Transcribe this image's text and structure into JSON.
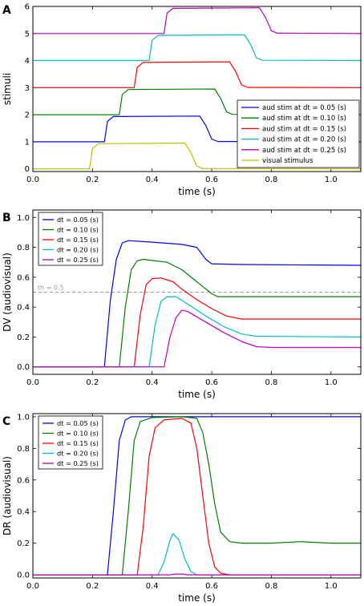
{
  "chart_data": [
    {
      "panel": "A",
      "type": "line",
      "xlabel": "time (s)",
      "ylabel": "stimuli",
      "xlim": [
        0.0,
        1.1
      ],
      "ylim": [
        -0.1,
        6.0
      ],
      "xticks": [
        "0.0",
        "0.2",
        "0.4",
        "0.6",
        "0.8",
        "1.0"
      ],
      "yticks": [
        "0",
        "1",
        "2",
        "3",
        "4",
        "5",
        "6"
      ],
      "legend_position": "lower-right",
      "series": [
        {
          "name": "aud stim at dt = 0.05 (s)",
          "color": "#0000ff",
          "points": [
            [
              0,
              1
            ],
            [
              0.24,
              1
            ],
            [
              0.25,
              1.75
            ],
            [
              0.27,
              1.93
            ],
            [
              0.56,
              1.95
            ],
            [
              0.58,
              1.6
            ],
            [
              0.6,
              1.1
            ],
            [
              0.62,
              1.01
            ],
            [
              1.1,
              1
            ]
          ]
        },
        {
          "name": "aud stim at dt = 0.10 (s)",
          "color": "#008000",
          "points": [
            [
              0,
              2
            ],
            [
              0.29,
              2
            ],
            [
              0.3,
              2.75
            ],
            [
              0.32,
              2.93
            ],
            [
              0.61,
              2.95
            ],
            [
              0.63,
              2.6
            ],
            [
              0.65,
              2.1
            ],
            [
              0.67,
              2.01
            ],
            [
              1.1,
              2
            ]
          ]
        },
        {
          "name": "aud stim at dt = 0.15 (s)",
          "color": "#ff0000",
          "points": [
            [
              0,
              3
            ],
            [
              0.34,
              3
            ],
            [
              0.35,
              3.75
            ],
            [
              0.37,
              3.93
            ],
            [
              0.66,
              3.95
            ],
            [
              0.68,
              3.6
            ],
            [
              0.7,
              3.1
            ],
            [
              0.72,
              3.01
            ],
            [
              1.1,
              3
            ]
          ]
        },
        {
          "name": "aud stim at dt = 0.20 (s)",
          "color": "#00bfbf",
          "points": [
            [
              0,
              4
            ],
            [
              0.39,
              4
            ],
            [
              0.4,
              4.75
            ],
            [
              0.42,
              4.93
            ],
            [
              0.71,
              4.95
            ],
            [
              0.73,
              4.6
            ],
            [
              0.75,
              4.1
            ],
            [
              0.77,
              4.01
            ],
            [
              1.1,
              4
            ]
          ]
        },
        {
          "name": "aud stim at dt = 0.25 (s)",
          "color": "#bf00bf",
          "points": [
            [
              0,
              5
            ],
            [
              0.44,
              5
            ],
            [
              0.45,
              5.75
            ],
            [
              0.47,
              5.93
            ],
            [
              0.76,
              5.95
            ],
            [
              0.78,
              5.6
            ],
            [
              0.8,
              5.1
            ],
            [
              0.82,
              5.01
            ],
            [
              1.1,
              5
            ]
          ]
        },
        {
          "name": "visual stimulus",
          "color": "#bfbf00",
          "points": [
            [
              0,
              0
            ],
            [
              0.19,
              0
            ],
            [
              0.2,
              0.75
            ],
            [
              0.22,
              0.93
            ],
            [
              0.51,
              0.95
            ],
            [
              0.53,
              0.6
            ],
            [
              0.55,
              0.1
            ],
            [
              0.57,
              0.01
            ],
            [
              1.1,
              0
            ]
          ]
        }
      ]
    },
    {
      "panel": "B",
      "type": "line",
      "xlabel": "time (s)",
      "ylabel": "DV (audiovisual)",
      "xlim": [
        0.0,
        1.1
      ],
      "ylim": [
        -0.05,
        1.05
      ],
      "xticks": [
        "0.0",
        "0.2",
        "0.4",
        "0.6",
        "0.8",
        "1.0"
      ],
      "yticks": [
        "0.0",
        "0.2",
        "0.4",
        "0.6",
        "0.8",
        "1.0"
      ],
      "threshold": {
        "label": "th = 0.5",
        "value": 0.5,
        "color": "#999999"
      },
      "legend_position": "top-left",
      "series": [
        {
          "name": "dt = 0.05 (s)",
          "color": "#0000ff",
          "points": [
            [
              0,
              0
            ],
            [
              0.24,
              0
            ],
            [
              0.26,
              0.45
            ],
            [
              0.28,
              0.72
            ],
            [
              0.3,
              0.83
            ],
            [
              0.32,
              0.845
            ],
            [
              0.4,
              0.835
            ],
            [
              0.5,
              0.82
            ],
            [
              0.55,
              0.8
            ],
            [
              0.58,
              0.72
            ],
            [
              0.6,
              0.69
            ],
            [
              0.7,
              0.685
            ],
            [
              1.1,
              0.68
            ]
          ]
        },
        {
          "name": "dt = 0.10 (s)",
          "color": "#008000",
          "points": [
            [
              0,
              0
            ],
            [
              0.29,
              0
            ],
            [
              0.31,
              0.4
            ],
            [
              0.33,
              0.65
            ],
            [
              0.35,
              0.71
            ],
            [
              0.37,
              0.72
            ],
            [
              0.45,
              0.7
            ],
            [
              0.5,
              0.65
            ],
            [
              0.55,
              0.57
            ],
            [
              0.6,
              0.49
            ],
            [
              0.62,
              0.47
            ],
            [
              1.1,
              0.47
            ]
          ]
        },
        {
          "name": "dt = 0.15 (s)",
          "color": "#ff0000",
          "points": [
            [
              0,
              0
            ],
            [
              0.34,
              0
            ],
            [
              0.36,
              0.35
            ],
            [
              0.38,
              0.55
            ],
            [
              0.4,
              0.59
            ],
            [
              0.43,
              0.595
            ],
            [
              0.47,
              0.57
            ],
            [
              0.5,
              0.52
            ],
            [
              0.55,
              0.45
            ],
            [
              0.6,
              0.39
            ],
            [
              0.65,
              0.34
            ],
            [
              0.7,
              0.32
            ],
            [
              1.1,
              0.32
            ]
          ]
        },
        {
          "name": "dt = 0.20 (s)",
          "color": "#00bfbf",
          "points": [
            [
              0,
              0
            ],
            [
              0.39,
              0
            ],
            [
              0.41,
              0.28
            ],
            [
              0.43,
              0.44
            ],
            [
              0.45,
              0.47
            ],
            [
              0.48,
              0.47
            ],
            [
              0.52,
              0.42
            ],
            [
              0.58,
              0.34
            ],
            [
              0.64,
              0.27
            ],
            [
              0.7,
              0.22
            ],
            [
              0.75,
              0.205
            ],
            [
              1.1,
              0.2
            ]
          ]
        },
        {
          "name": "dt = 0.25 (s)",
          "color": "#bf00bf",
          "points": [
            [
              0,
              0
            ],
            [
              0.44,
              0
            ],
            [
              0.46,
              0.2
            ],
            [
              0.48,
              0.33
            ],
            [
              0.5,
              0.38
            ],
            [
              0.52,
              0.37
            ],
            [
              0.58,
              0.3
            ],
            [
              0.64,
              0.23
            ],
            [
              0.7,
              0.17
            ],
            [
              0.75,
              0.135
            ],
            [
              0.8,
              0.13
            ],
            [
              1.1,
              0.13
            ]
          ]
        }
      ]
    },
    {
      "panel": "C",
      "type": "line",
      "xlabel": "time (s)",
      "ylabel": "DR (audiovisual)",
      "xlim": [
        0.0,
        1.1
      ],
      "ylim": [
        -0.02,
        1.02
      ],
      "xticks": [
        "0.0",
        "0.2",
        "0.4",
        "0.6",
        "0.8",
        "1.0"
      ],
      "yticks": [
        "0.0",
        "0.2",
        "0.4",
        "0.6",
        "0.8",
        "1.0"
      ],
      "legend_position": "top-left",
      "series": [
        {
          "name": "dt = 0.05 (s)",
          "color": "#0000ff",
          "points": [
            [
              0,
              0
            ],
            [
              0.25,
              0
            ],
            [
              0.27,
              0.4
            ],
            [
              0.29,
              0.85
            ],
            [
              0.31,
              0.98
            ],
            [
              0.33,
              1.0
            ],
            [
              1.1,
              1.0
            ]
          ]
        },
        {
          "name": "dt = 0.10 (s)",
          "color": "#008000",
          "points": [
            [
              0,
              0
            ],
            [
              0.3,
              0
            ],
            [
              0.32,
              0.4
            ],
            [
              0.34,
              0.85
            ],
            [
              0.36,
              0.97
            ],
            [
              0.4,
              0.995
            ],
            [
              0.5,
              1.0
            ],
            [
              0.55,
              0.99
            ],
            [
              0.57,
              0.9
            ],
            [
              0.59,
              0.7
            ],
            [
              0.61,
              0.45
            ],
            [
              0.63,
              0.27
            ],
            [
              0.66,
              0.21
            ],
            [
              0.7,
              0.2
            ],
            [
              0.8,
              0.2
            ],
            [
              0.9,
              0.21
            ],
            [
              1.0,
              0.2
            ],
            [
              1.1,
              0.2
            ]
          ]
        },
        {
          "name": "dt = 0.15 (s)",
          "color": "#ff0000",
          "points": [
            [
              0,
              0
            ],
            [
              0.35,
              0
            ],
            [
              0.37,
              0.3
            ],
            [
              0.39,
              0.75
            ],
            [
              0.41,
              0.93
            ],
            [
              0.44,
              0.98
            ],
            [
              0.5,
              0.99
            ],
            [
              0.53,
              0.96
            ],
            [
              0.55,
              0.8
            ],
            [
              0.57,
              0.5
            ],
            [
              0.59,
              0.2
            ],
            [
              0.61,
              0.05
            ],
            [
              0.63,
              0.01
            ],
            [
              0.66,
              0
            ],
            [
              1.1,
              0
            ]
          ]
        },
        {
          "name": "dt = 0.20 (s)",
          "color": "#00bfbf",
          "points": [
            [
              0,
              0
            ],
            [
              0.42,
              0
            ],
            [
              0.44,
              0.08
            ],
            [
              0.46,
              0.22
            ],
            [
              0.47,
              0.26
            ],
            [
              0.49,
              0.22
            ],
            [
              0.51,
              0.1
            ],
            [
              0.53,
              0.02
            ],
            [
              0.55,
              0
            ],
            [
              1.1,
              0
            ]
          ]
        },
        {
          "name": "dt = 0.25 (s)",
          "color": "#bf00bf",
          "points": [
            [
              0,
              0
            ],
            [
              0.46,
              0
            ],
            [
              0.48,
              0.005
            ],
            [
              0.5,
              0.005
            ],
            [
              0.52,
              0
            ],
            [
              1.1,
              0
            ]
          ]
        }
      ]
    }
  ]
}
